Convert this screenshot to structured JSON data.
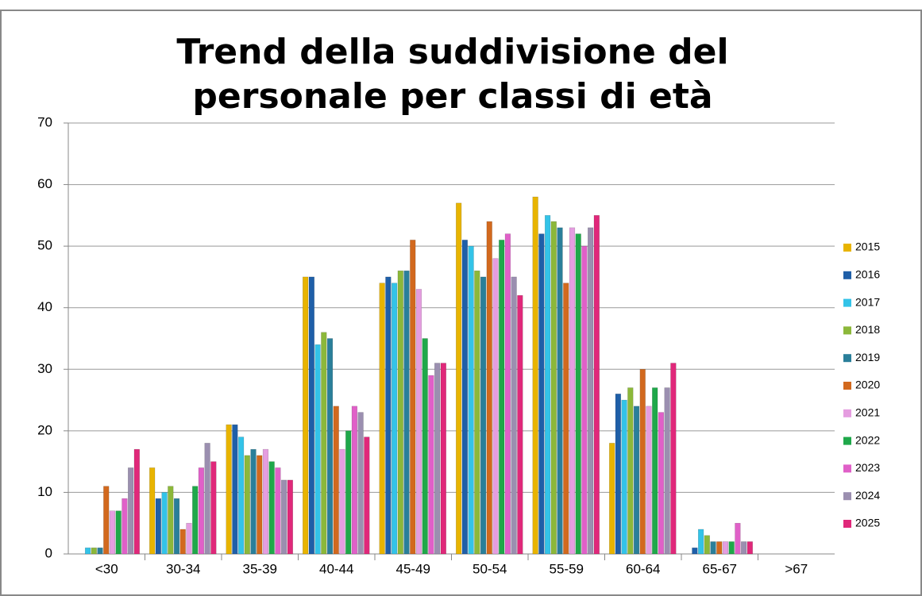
{
  "chart_data": {
    "type": "bar",
    "title": "Trend della suddivisione del personale per classi di età",
    "categories": [
      "<30",
      "30-34",
      "35-39",
      "40-44",
      "45-49",
      "50-54",
      "55-59",
      "60-64",
      "65-67",
      ">67"
    ],
    "series": [
      {
        "name": "2015",
        "color": "#e8b400",
        "values": [
          0,
          14,
          21,
          45,
          44,
          57,
          58,
          18,
          0,
          0
        ]
      },
      {
        "name": "2016",
        "color": "#1f5fa8",
        "values": [
          0,
          9,
          21,
          45,
          45,
          51,
          52,
          26,
          1,
          0
        ]
      },
      {
        "name": "2017",
        "color": "#33c3e8",
        "values": [
          1,
          10,
          19,
          34,
          44,
          50,
          55,
          25,
          4,
          0
        ]
      },
      {
        "name": "2018",
        "color": "#8cb83a",
        "values": [
          1,
          11,
          16,
          36,
          46,
          46,
          54,
          27,
          3,
          0
        ]
      },
      {
        "name": "2019",
        "color": "#2a7f9a",
        "values": [
          1,
          9,
          17,
          35,
          46,
          45,
          53,
          24,
          2,
          0
        ]
      },
      {
        "name": "2020",
        "color": "#d2691e",
        "values": [
          11,
          4,
          16,
          24,
          51,
          54,
          44,
          30,
          2,
          0
        ]
      },
      {
        "name": "2021",
        "color": "#e59de0",
        "values": [
          7,
          5,
          17,
          17,
          43,
          48,
          53,
          24,
          2,
          0
        ]
      },
      {
        "name": "2022",
        "color": "#1fa84a",
        "values": [
          7,
          11,
          15,
          20,
          35,
          51,
          52,
          27,
          2,
          0
        ]
      },
      {
        "name": "2023",
        "color": "#e060c8",
        "values": [
          9,
          14,
          14,
          24,
          29,
          52,
          50,
          23,
          5,
          0
        ]
      },
      {
        "name": "2024",
        "color": "#9b8fb0",
        "values": [
          14,
          18,
          12,
          23,
          31,
          45,
          53,
          27,
          2,
          0
        ]
      },
      {
        "name": "2025",
        "color": "#e0287a",
        "values": [
          17,
          15,
          12,
          19,
          31,
          42,
          55,
          31,
          2,
          0
        ]
      }
    ],
    "ylim": [
      0,
      70
    ],
    "yticks": [
      0,
      10,
      20,
      30,
      40,
      50,
      60,
      70
    ],
    "grid": true,
    "legend": "right"
  }
}
